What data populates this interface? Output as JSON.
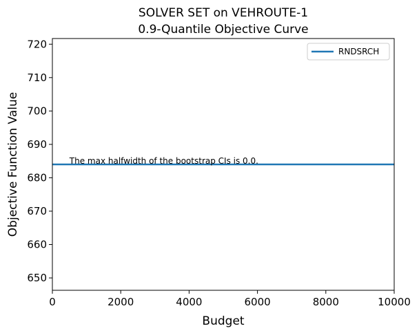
{
  "chart_data": {
    "type": "line",
    "title": [
      "SOLVER SET on VEHROUTE-1",
      "0.9-Quantile Objective Curve"
    ],
    "xlabel": "Budget",
    "ylabel": "Objective Function Value",
    "xlim": [
      0,
      10000
    ],
    "ylim": [
      646.3,
      721.7
    ],
    "xticks": [
      0,
      2000,
      4000,
      6000,
      8000,
      10000
    ],
    "yticks": [
      650,
      660,
      670,
      680,
      690,
      700,
      710,
      720
    ],
    "grid": false,
    "legend_position": "top-right",
    "series": [
      {
        "name": "RNDSRCH",
        "color": "#1f77b4",
        "x": [
          0,
          10000
        ],
        "y": [
          684.0,
          684.0
        ]
      }
    ],
    "annotation": {
      "text": "The max halfwidth of the bootstrap CIs is 0.0.",
      "x": 500,
      "y": 684.0
    }
  }
}
